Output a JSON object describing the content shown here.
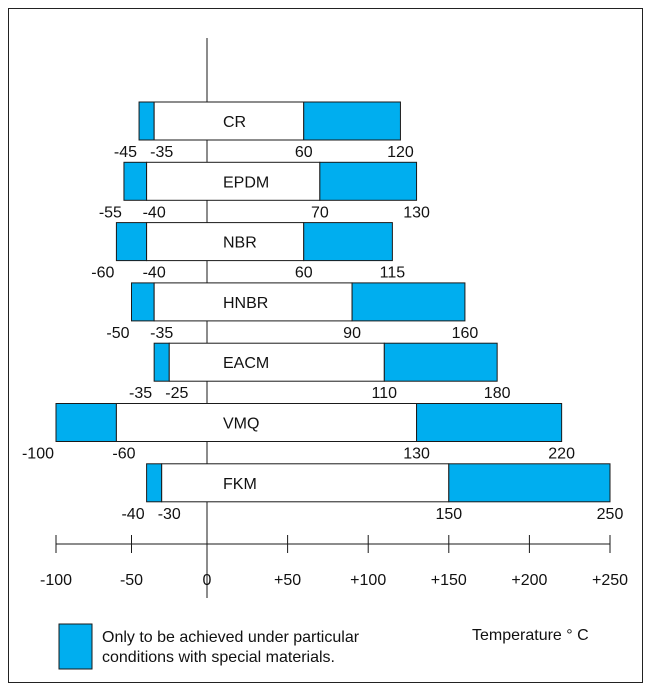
{
  "chart_data": {
    "type": "bar",
    "title": "",
    "xlabel": "Temperature ° C",
    "ylabel": "",
    "xlim": [
      -100,
      250
    ],
    "ticks": [
      -100,
      -50,
      0,
      50,
      100,
      150,
      200,
      250
    ],
    "tick_labels": [
      "-100",
      "-50",
      "0",
      "+50",
      "+100",
      "+150",
      "+200",
      "+250"
    ],
    "categories": [
      "CR",
      "EPDM",
      "NBR",
      "HNBR",
      "EACM",
      "VMQ",
      "FKM"
    ],
    "series": [
      {
        "ranges": [
          {
            "outer_min": -45,
            "inner_min": -35,
            "inner_max": 60,
            "outer_max": 120,
            "labels": [
              "-45",
              "-35",
              "60",
              "120"
            ]
          },
          {
            "outer_min": -55,
            "inner_min": -40,
            "inner_max": 70,
            "outer_max": 130,
            "labels": [
              "-55",
              "-40",
              "70",
              "130"
            ]
          },
          {
            "outer_min": -60,
            "inner_min": -40,
            "inner_max": 60,
            "outer_max": 115,
            "labels": [
              "-60",
              "-40",
              "60",
              "115"
            ]
          },
          {
            "outer_min": -50,
            "inner_min": -35,
            "inner_max": 90,
            "outer_max": 160,
            "labels": [
              "-50",
              "-35",
              "90",
              "160"
            ]
          },
          {
            "outer_min": -35,
            "inner_min": -25,
            "inner_max": 110,
            "outer_max": 180,
            "labels": [
              "-35",
              "-25",
              "110",
              "180"
            ]
          },
          {
            "outer_min": -100,
            "inner_min": -60,
            "inner_max": 130,
            "outer_max": 220,
            "labels": [
              "-100",
              "-60",
              "130",
              "220"
            ]
          },
          {
            "outer_min": -40,
            "inner_min": -30,
            "inner_max": 150,
            "outer_max": 250,
            "labels": [
              "-40",
              "-30",
              "150",
              "250"
            ]
          }
        ]
      }
    ],
    "legend": {
      "text": "Only to be achieved under particular conditions with special materials.",
      "lines": [
        "Only to be achieved under particular",
        "conditions with special materials."
      ]
    },
    "colors": {
      "special": "#00aeef",
      "normal": "#ffffff",
      "stroke": "#1a1a1a"
    }
  }
}
